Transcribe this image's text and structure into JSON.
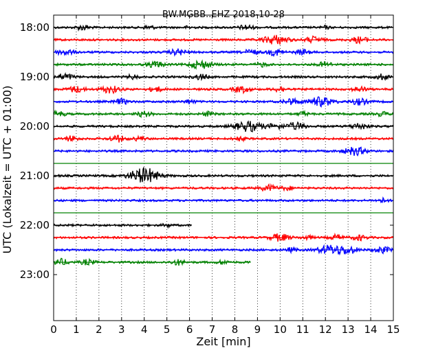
{
  "chart_data": {
    "type": "line",
    "title": "BW.MGBB..EHZ 2018-10-28",
    "xlabel": "Zeit  [min]",
    "ylabel": "UTC (Lokalzeit = UTC + 01:00)",
    "xlim": [
      0,
      15
    ],
    "x_ticks": [
      "0",
      "1",
      "2",
      "3",
      "4",
      "5",
      "6",
      "7",
      "8",
      "9",
      "10",
      "11",
      "12",
      "13",
      "14",
      "15"
    ],
    "y_ticks": [
      "18:00",
      "19:00",
      "20:00",
      "21:00",
      "22:00",
      "23:00"
    ],
    "grid": {
      "x": "dotted",
      "y": false
    },
    "row_minutes": 15,
    "start_time": "18:00",
    "colors": [
      "#000000",
      "#ff0000",
      "#0000ff",
      "#008000"
    ],
    "rows": [
      {
        "start": "18:00",
        "bursts": [
          [
            1.3,
            0.5
          ],
          [
            4.2,
            0.4
          ],
          [
            6.0,
            0.3
          ],
          [
            8.5,
            0.5
          ],
          [
            12.0,
            0.3
          ]
        ],
        "end": 15
      },
      {
        "start": "18:15",
        "bursts": [
          [
            9.8,
            0.9
          ],
          [
            11.5,
            0.6
          ],
          [
            13.5,
            0.6
          ]
        ],
        "end": 15
      },
      {
        "start": "18:30",
        "bursts": [
          [
            0.5,
            0.6
          ],
          [
            5.5,
            0.6
          ],
          [
            8.7,
            0.5
          ],
          [
            9.8,
            0.6
          ],
          [
            11.0,
            0.5
          ]
        ],
        "end": 15
      },
      {
        "start": "18:45",
        "bursts": [
          [
            4.5,
            0.6
          ],
          [
            6.5,
            0.8
          ],
          [
            9.2,
            0.4
          ],
          [
            12.0,
            0.5
          ]
        ],
        "end": 15
      },
      {
        "start": "19:00",
        "bursts": [
          [
            0.5,
            0.6
          ],
          [
            3.5,
            0.4
          ],
          [
            6.5,
            0.5
          ],
          [
            14.5,
            0.5
          ]
        ],
        "end": 15
      },
      {
        "start": "19:15",
        "bursts": [
          [
            1.0,
            0.6
          ],
          [
            2.5,
            0.7
          ],
          [
            4.5,
            0.5
          ],
          [
            8.3,
            0.6
          ],
          [
            10.0,
            0.5
          ],
          [
            13.5,
            0.5
          ]
        ],
        "end": 15
      },
      {
        "start": "19:30",
        "bursts": [
          [
            3.0,
            0.5
          ],
          [
            6.0,
            0.4
          ],
          [
            10.5,
            0.6
          ],
          [
            11.8,
            0.9
          ],
          [
            13.5,
            0.6
          ]
        ],
        "end": 15
      },
      {
        "start": "19:45",
        "bursts": [
          [
            0.2,
            0.5
          ],
          [
            4.0,
            0.5
          ],
          [
            6.8,
            0.4
          ],
          [
            11.0,
            0.4
          ],
          [
            14.5,
            0.4
          ]
        ],
        "end": 15
      },
      {
        "start": "20:00",
        "bursts": [
          [
            8.6,
            1.0
          ],
          [
            9.8,
            0.5
          ],
          [
            10.7,
            0.7
          ],
          [
            13.5,
            0.6
          ]
        ],
        "end": 15
      },
      {
        "start": "20:15",
        "bursts": [
          [
            0.8,
            0.5
          ],
          [
            2.8,
            0.6
          ],
          [
            3.8,
            0.4
          ],
          [
            8.2,
            0.4
          ]
        ],
        "end": 15
      },
      {
        "start": "20:30",
        "bursts": [
          [
            13.3,
            0.8
          ]
        ],
        "end": 15
      },
      {
        "start": "20:45",
        "bursts": [],
        "end": 15
      },
      {
        "start": "21:00",
        "bursts": [
          [
            3.8,
            0.9
          ],
          [
            4.2,
            0.9
          ]
        ],
        "end": 15
      },
      {
        "start": "21:15",
        "bursts": [
          [
            9.5,
            0.6
          ],
          [
            10.3,
            0.4
          ]
        ],
        "end": 15
      },
      {
        "start": "21:30",
        "bursts": [
          [
            14.5,
            0.4
          ]
        ],
        "end": 15
      },
      {
        "start": "21:45",
        "bursts": [],
        "end": 15
      },
      {
        "start": "22:00",
        "bursts": [
          [
            5.0,
            0.3
          ]
        ],
        "end": 6.1
      },
      {
        "start": "22:15",
        "bursts": [
          [
            10.0,
            0.7
          ],
          [
            11.2,
            0.4
          ],
          [
            12.5,
            0.5
          ],
          [
            13.5,
            0.5
          ]
        ],
        "end": 15
      },
      {
        "start": "22:30",
        "bursts": [
          [
            10.5,
            0.4
          ],
          [
            12.2,
            0.9
          ],
          [
            13.0,
            0.7
          ],
          [
            14.5,
            0.6
          ]
        ],
        "end": 15
      },
      {
        "start": "22:45",
        "bursts": [
          [
            0.3,
            0.6
          ],
          [
            1.5,
            0.5
          ],
          [
            5.5,
            0.5
          ],
          [
            7.5,
            0.4
          ]
        ],
        "end": 8.7
      }
    ]
  }
}
